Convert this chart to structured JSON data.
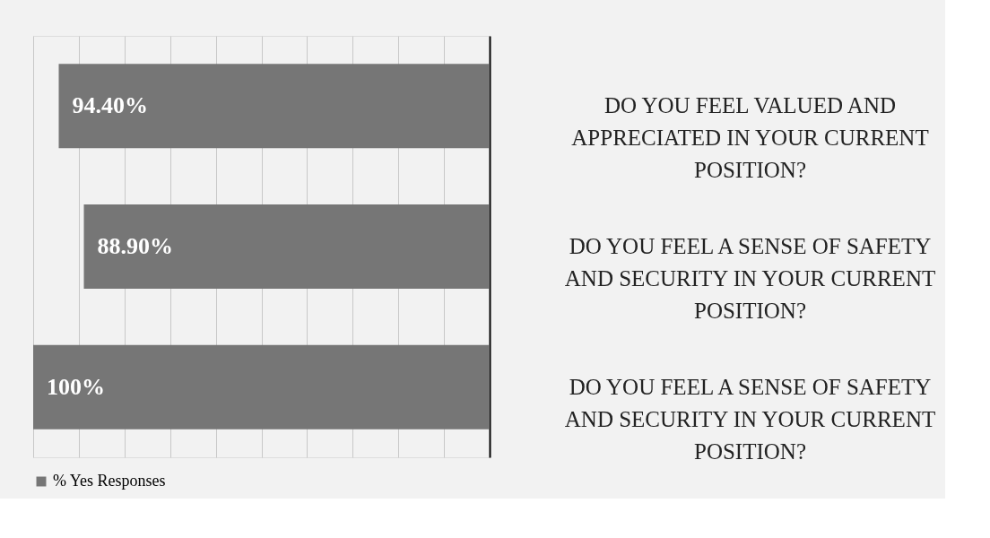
{
  "chart_data": {
    "type": "bar",
    "orientation": "horizontal",
    "categories": [
      "DO YOU FEEL  VALUED AND APPRECIATED  IN YOUR CURRENT POSITION?",
      "DO YOU FEEL A SENSE OF SAFETY AND SECURITY IN YOUR CURRENT POSITION?",
      "DO YOU FEEL A SENSE OF SAFETY AND SECURITY IN YOUR CURRENT POSITION?"
    ],
    "series": [
      {
        "name": "% Yes Responses",
        "color": "#767676",
        "values": [
          94.4,
          88.9,
          100
        ],
        "value_labels": [
          "94.40%",
          "88.90%",
          "100%"
        ]
      }
    ],
    "grid": "x",
    "legend": "bottom",
    "tick_labels": "y"
  }
}
